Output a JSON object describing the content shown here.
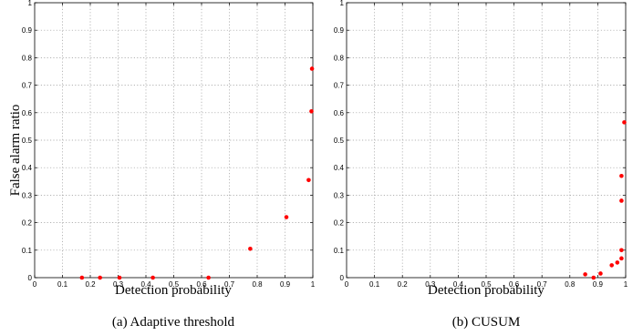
{
  "chart_data": [
    {
      "type": "scatter",
      "caption": "(a) Adaptive threshold",
      "xlabel": "Detection probability",
      "ylabel": "False alarm ratio",
      "xlim": [
        0,
        1
      ],
      "ylim": [
        0,
        1
      ],
      "xticks": [
        "0",
        "0.1",
        "0.2",
        "0.3",
        "0.4",
        "0.5",
        "0.6",
        "0.7",
        "0.8",
        "0.9",
        "1"
      ],
      "yticks": [
        "0",
        "0.1",
        "0.2",
        "0.3",
        "0.4",
        "0.5",
        "0.6",
        "0.7",
        "0.8",
        "0.9",
        "1"
      ],
      "grid": true,
      "color": "#ff0000",
      "points": [
        {
          "x": 0.17,
          "y": 0.0
        },
        {
          "x": 0.235,
          "y": 0.0
        },
        {
          "x": 0.305,
          "y": 0.0
        },
        {
          "x": 0.425,
          "y": 0.0
        },
        {
          "x": 0.625,
          "y": 0.0
        },
        {
          "x": 0.775,
          "y": 0.105
        },
        {
          "x": 0.905,
          "y": 0.22
        },
        {
          "x": 0.985,
          "y": 0.355
        },
        {
          "x": 0.995,
          "y": 0.605
        },
        {
          "x": 0.997,
          "y": 0.76
        }
      ]
    },
    {
      "type": "scatter",
      "caption": "(b) CUSUM",
      "xlabel": "Detection probability",
      "ylabel": "",
      "xlim": [
        0,
        1
      ],
      "ylim": [
        0,
        1
      ],
      "xticks": [
        "0",
        "0.1",
        "0.2",
        "0.3",
        "0.4",
        "0.5",
        "0.6",
        "0.7",
        "0.8",
        "0.9",
        "1"
      ],
      "yticks": [
        "0",
        "0.1",
        "0.2",
        "0.3",
        "0.4",
        "0.5",
        "0.6",
        "0.7",
        "0.8",
        "0.9",
        "1"
      ],
      "grid": true,
      "color": "#ff0000",
      "points": [
        {
          "x": 0.855,
          "y": 0.012
        },
        {
          "x": 0.885,
          "y": 0.0
        },
        {
          "x": 0.91,
          "y": 0.015
        },
        {
          "x": 0.95,
          "y": 0.045
        },
        {
          "x": 0.97,
          "y": 0.055
        },
        {
          "x": 0.985,
          "y": 0.07
        },
        {
          "x": 0.985,
          "y": 0.1
        },
        {
          "x": 0.985,
          "y": 0.28
        },
        {
          "x": 0.985,
          "y": 0.37
        },
        {
          "x": 0.995,
          "y": 0.565
        }
      ]
    }
  ]
}
